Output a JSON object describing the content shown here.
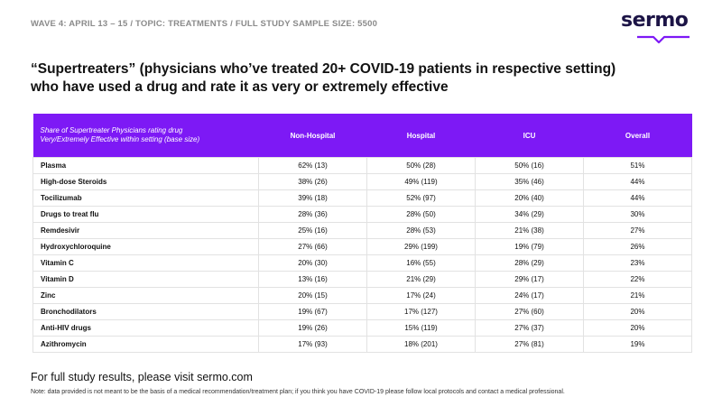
{
  "header": {
    "subtitle": "WAVE 4: APRIL 13 – 15 / TOPIC: TREATMENTS /  FULL STUDY SAMPLE SIZE: 5500",
    "logo_text": "sermo"
  },
  "title": {
    "line1": "“Supertreaters” (physicians who’ve treated 20+ COVID-19 patients in respective setting)",
    "line2": "who have used a drug and rate it as very or extremely effective"
  },
  "table": {
    "row_header_line1": "Share of Supertreater Physicians rating drug",
    "row_header_line2": "Very/Extremely Effective within setting (base size)",
    "columns": [
      "Non-Hospital",
      "Hospital",
      "ICU",
      "Overall"
    ],
    "rows": [
      {
        "drug": "Plasma",
        "non_hospital": "62% (13)",
        "hospital": "50% (28)",
        "icu": "50% (16)",
        "overall": "51%"
      },
      {
        "drug": "High-dose Steroids",
        "non_hospital": "38% (26)",
        "hospital": "49% (119)",
        "icu": "35% (46)",
        "overall": "44%"
      },
      {
        "drug": "Tocilizumab",
        "non_hospital": "39% (18)",
        "hospital": "52% (97)",
        "icu": "20% (40)",
        "overall": "44%"
      },
      {
        "drug": "Drugs to treat flu",
        "non_hospital": "28% (36)",
        "hospital": "28% (50)",
        "icu": "34% (29)",
        "overall": "30%"
      },
      {
        "drug": "Remdesivir",
        "non_hospital": "25% (16)",
        "hospital": "28% (53)",
        "icu": "21% (38)",
        "overall": "27%"
      },
      {
        "drug": "Hydroxychloroquine",
        "non_hospital": "27% (66)",
        "hospital": "29% (199)",
        "icu": "19% (79)",
        "overall": "26%"
      },
      {
        "drug": "Vitamin C",
        "non_hospital": "20% (30)",
        "hospital": "16% (55)",
        "icu": "28% (29)",
        "overall": "23%"
      },
      {
        "drug": "Vitamin D",
        "non_hospital": "13% (16)",
        "hospital": "21% (29)",
        "icu": "29% (17)",
        "overall": "22%"
      },
      {
        "drug": "Zinc",
        "non_hospital": "20% (15)",
        "hospital": "17% (24)",
        "icu": "24% (17)",
        "overall": "21%"
      },
      {
        "drug": "Bronchodilators",
        "non_hospital": "19% (67)",
        "hospital": "17% (127)",
        "icu": "27% (60)",
        "overall": "20%"
      },
      {
        "drug": "Anti-HIV drugs",
        "non_hospital": "19% (26)",
        "hospital": "15% (119)",
        "icu": "27% (37)",
        "overall": "20%"
      },
      {
        "drug": "Azithromycin",
        "non_hospital": "17% (93)",
        "hospital": "18% (201)",
        "icu": "27% (81)",
        "overall": "19%"
      }
    ]
  },
  "footer": {
    "visit": "For full study results, please visit sermo.com",
    "note": "Note: data provided is not meant to be the basis of a medical recommendation/treatment plan; if you think you have COVID-19 please follow local protocols and contact a medical professional."
  },
  "colors": {
    "header_bg": "#7d19f5",
    "logo": "#1c1446",
    "logo_accent": "#7d19f5"
  }
}
